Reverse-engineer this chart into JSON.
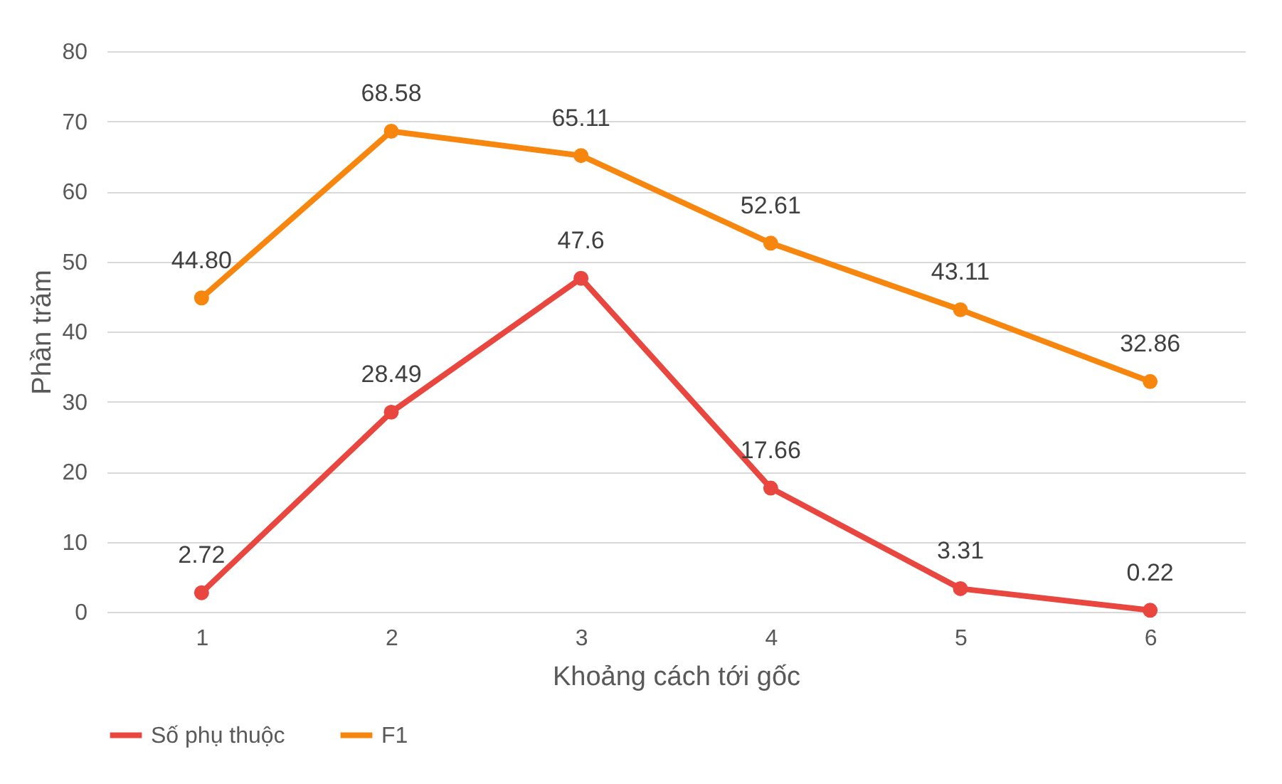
{
  "chart_data": {
    "type": "line",
    "xlabel": "Khoảng cách tới gốc",
    "ylabel": "Phần trăm",
    "categories": [
      "1",
      "2",
      "3",
      "4",
      "5",
      "6"
    ],
    "series": [
      {
        "name": "Số phụ thuộc",
        "color": "#e8463e",
        "values": [
          2.72,
          28.49,
          47.6,
          17.66,
          3.31,
          0.22
        ],
        "value_labels": [
          "2.72",
          "28.49",
          "47.6",
          "17.66",
          "3.31",
          "0.22"
        ]
      },
      {
        "name": "F1",
        "color": "#f7860f",
        "values": [
          44.8,
          68.58,
          65.11,
          52.61,
          43.11,
          32.86
        ],
        "value_labels": [
          "44.80",
          "68.58",
          "65.11",
          "52.61",
          "43.11",
          "32.86"
        ]
      }
    ],
    "ylim": [
      0,
      80
    ],
    "yticks": [
      0,
      10,
      20,
      30,
      40,
      50,
      60,
      70,
      80
    ],
    "grid": "y",
    "legend": "bottom",
    "marker": "circle",
    "line_style": "solid"
  }
}
